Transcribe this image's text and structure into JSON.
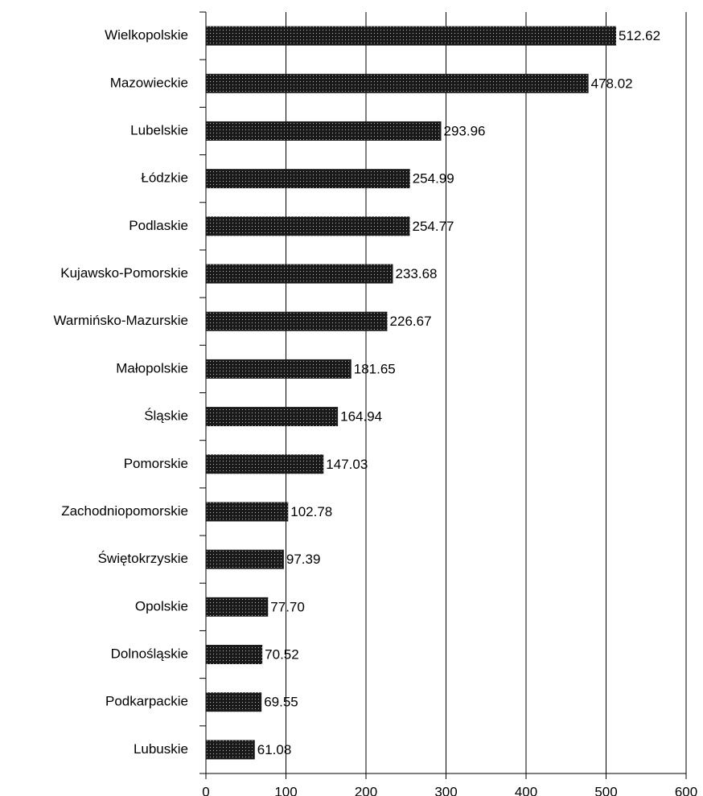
{
  "chart_data": {
    "type": "bar",
    "orientation": "horizontal",
    "categories": [
      "Wielkopolskie",
      "Mazowieckie",
      "Lubelskie",
      "Łódzkie",
      "Podlaskie",
      "Kujawsko-Pomorskie",
      "Warmińsko-Mazurskie",
      "Małopolskie",
      "Śląskie",
      "Pomorskie",
      "Zachodniopomorskie",
      "Świętokrzyskie",
      "Opolskie",
      "Dolnośląskie",
      "Podkarpackie",
      "Lubuskie"
    ],
    "values": [
      512.62,
      478.02,
      293.96,
      254.99,
      254.77,
      233.68,
      226.67,
      181.65,
      164.94,
      147.03,
      102.78,
      97.39,
      77.7,
      70.52,
      69.55,
      61.08
    ],
    "value_labels": [
      "512.62",
      "478.02",
      "293.96",
      "254.99",
      "254.77",
      "233.68",
      "226.67",
      "181.65",
      "164.94",
      "147.03",
      "102.78",
      "97.39",
      "77.70",
      "70.52",
      "69.55",
      "61.08"
    ],
    "color": "#1a1a1a",
    "xlim": [
      0,
      600
    ],
    "xticks": [
      0,
      100,
      200,
      300,
      400,
      500,
      600
    ],
    "grid": true
  }
}
